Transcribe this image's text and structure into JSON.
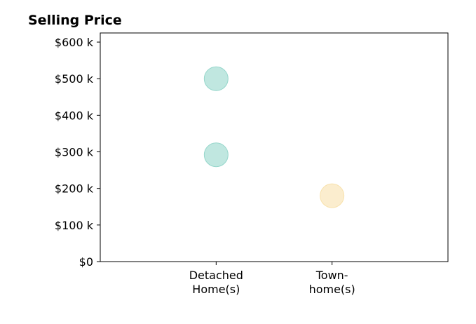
{
  "chart_data": {
    "type": "scatter",
    "title": "Selling Price",
    "xlabel": "",
    "ylabel": "",
    "categories": [
      {
        "lines": [
          "Detached",
          "Home(s)"
        ]
      },
      {
        "lines": [
          "Town-",
          "home(s)"
        ]
      }
    ],
    "x_range": [
      -1,
      2
    ],
    "ylim": [
      0,
      625000
    ],
    "y_ticks": [
      {
        "value": 0,
        "label": "$0"
      },
      {
        "value": 100000,
        "label": "$100 k"
      },
      {
        "value": 200000,
        "label": "$200 k"
      },
      {
        "value": 300000,
        "label": "$300 k"
      },
      {
        "value": 400000,
        "label": "$400 k"
      },
      {
        "value": 500000,
        "label": "$500 k"
      },
      {
        "value": 600000,
        "label": "$600 k"
      }
    ],
    "grid": false,
    "legend": "none",
    "points": [
      {
        "category": 0,
        "value": 500000,
        "color": "#8dd3c7"
      },
      {
        "category": 0,
        "value": 292000,
        "color": "#8dd3c7"
      },
      {
        "category": 1,
        "value": 180000,
        "color": "#f7dfa5"
      }
    ]
  }
}
